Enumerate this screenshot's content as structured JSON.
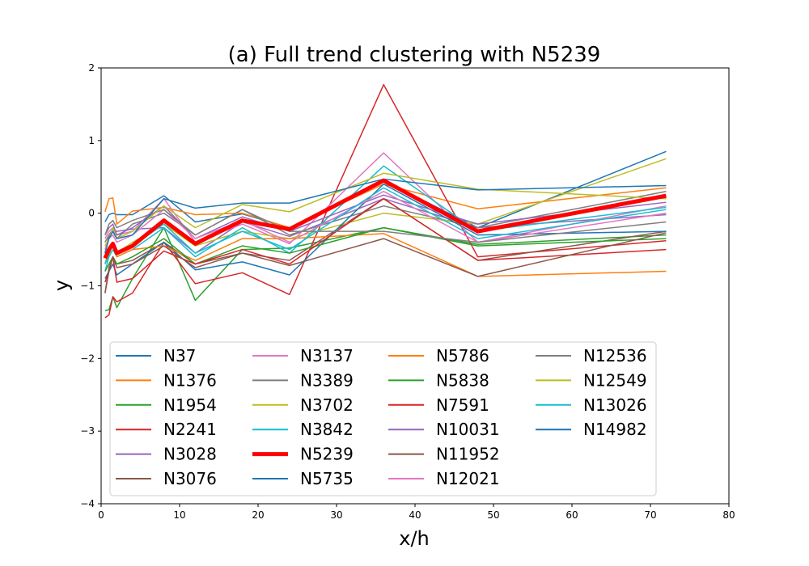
{
  "chart_data": {
    "type": "line",
    "title": "(a) Full trend clustering with N5239",
    "xlabel": "x/h",
    "ylabel": "y",
    "xlim": [
      0,
      80
    ],
    "ylim": [
      -4,
      2
    ],
    "xticks": [
      0,
      10,
      20,
      30,
      40,
      50,
      60,
      70,
      80
    ],
    "yticks": [
      -4,
      -3,
      -2,
      -1,
      0,
      1,
      2
    ],
    "x": [
      0.5,
      1,
      1.5,
      2,
      4,
      8,
      12,
      18,
      24,
      36,
      48,
      72
    ],
    "grid": false,
    "legend_position": "lower-center",
    "highlight_series": "N5239",
    "highlight_color": "#ff0000",
    "series": [
      {
        "name": "N37",
        "color": "#1f77b4",
        "values": [
          -0.12,
          -0.02,
          0.0,
          -0.02,
          -0.02,
          0.24,
          -0.12,
          -0.01,
          -0.2,
          0.45,
          -0.2,
          0.85
        ]
      },
      {
        "name": "N1376",
        "color": "#ff7f0e",
        "values": [
          0.02,
          0.2,
          0.21,
          -0.15,
          0.03,
          0.08,
          -0.02,
          -0.0,
          -0.2,
          0.4,
          0.06,
          0.35
        ]
      },
      {
        "name": "N1954",
        "color": "#2ca02c",
        "values": [
          -1.34,
          -1.33,
          -1.15,
          -1.3,
          -0.9,
          -0.2,
          -1.2,
          -0.5,
          -0.48,
          -0.2,
          -0.43,
          -0.3
        ]
      },
      {
        "name": "N2241",
        "color": "#d62728",
        "values": [
          -1.44,
          -1.4,
          -1.15,
          -1.22,
          -1.1,
          -0.4,
          -0.97,
          -0.82,
          -1.12,
          1.77,
          -0.6,
          -0.38
        ]
      },
      {
        "name": "N3028",
        "color": "#9467bd",
        "values": [
          -0.55,
          -0.3,
          -0.22,
          -0.25,
          -0.22,
          -0.2,
          -0.55,
          -0.12,
          -0.32,
          0.2,
          -0.2,
          -0.02
        ]
      },
      {
        "name": "N3076",
        "color": "#8c564b",
        "values": [
          -1.1,
          -0.75,
          -0.6,
          -0.7,
          -0.65,
          -0.4,
          -0.7,
          -0.55,
          -0.65,
          0.2,
          -0.65,
          -0.25
        ]
      },
      {
        "name": "N3137",
        "color": "#e377c2",
        "values": [
          -0.35,
          -0.25,
          -0.2,
          -0.3,
          -0.25,
          0.2,
          -0.4,
          -0.15,
          -0.42,
          0.83,
          -0.4,
          0.1
        ]
      },
      {
        "name": "N3389",
        "color": "#7f7f7f",
        "values": [
          -0.4,
          -0.3,
          -0.25,
          -0.35,
          -0.15,
          0.0,
          -0.3,
          0.05,
          -0.3,
          0.1,
          -0.2,
          0.3
        ]
      },
      {
        "name": "N3702",
        "color": "#bcbd22",
        "values": [
          -0.7,
          -0.6,
          -0.4,
          -0.55,
          -0.4,
          -0.15,
          -0.45,
          -0.25,
          -0.35,
          0.0,
          -0.15,
          0.75
        ]
      },
      {
        "name": "N3842",
        "color": "#17becf",
        "values": [
          -0.8,
          -0.6,
          -0.5,
          -0.6,
          -0.5,
          -0.2,
          -0.6,
          -0.2,
          -0.55,
          0.65,
          -0.25,
          0.08
        ]
      },
      {
        "name": "N5239",
        "color": "#ff0000",
        "values": [
          -0.62,
          -0.5,
          -0.42,
          -0.55,
          -0.45,
          -0.1,
          -0.42,
          -0.1,
          -0.22,
          0.45,
          -0.25,
          0.24
        ]
      },
      {
        "name": "N5735",
        "color": "#1f77b4",
        "values": [
          -0.9,
          -0.8,
          -0.7,
          -0.85,
          -0.7,
          -0.4,
          -0.78,
          -0.67,
          -0.85,
          0.4,
          -0.3,
          -0.25
        ]
      },
      {
        "name": "N5786",
        "color": "#ff7f0e",
        "values": [
          -0.7,
          -0.5,
          -0.4,
          -0.6,
          -0.5,
          -0.45,
          -0.65,
          -0.35,
          -0.35,
          -0.28,
          -0.87,
          -0.8
        ]
      },
      {
        "name": "N5838",
        "color": "#2ca02c",
        "values": [
          -0.8,
          -0.7,
          -0.6,
          -0.7,
          -0.6,
          -0.35,
          -0.7,
          -0.45,
          -0.55,
          -0.2,
          -0.45,
          -0.35
        ]
      },
      {
        "name": "N7591",
        "color": "#d62728",
        "values": [
          -0.95,
          -0.8,
          -0.6,
          -0.95,
          -0.9,
          -0.52,
          -0.7,
          -0.5,
          -0.7,
          0.2,
          -0.65,
          -0.5
        ]
      },
      {
        "name": "N10031",
        "color": "#9467bd",
        "values": [
          -0.3,
          -0.2,
          -0.15,
          -0.3,
          -0.2,
          0.1,
          -0.35,
          -0.05,
          -0.25,
          0.25,
          -0.15,
          0.15
        ]
      },
      {
        "name": "N11952",
        "color": "#8c564b",
        "values": [
          -1.1,
          -0.8,
          -0.6,
          -0.75,
          -0.7,
          -0.45,
          -0.75,
          -0.55,
          -0.72,
          -0.35,
          -0.87,
          -0.27
        ]
      },
      {
        "name": "N12021",
        "color": "#e377c2",
        "values": [
          -0.5,
          -0.35,
          -0.3,
          -0.4,
          -0.3,
          0.05,
          -0.35,
          -0.1,
          -0.4,
          0.3,
          -0.4,
          0.0
        ]
      },
      {
        "name": "N12536",
        "color": "#7f7f7f",
        "values": [
          -0.3,
          -0.15,
          -0.1,
          -0.2,
          -0.1,
          0.05,
          -0.3,
          0.05,
          -0.25,
          -0.25,
          -0.4,
          -0.12
        ]
      },
      {
        "name": "N12549",
        "color": "#bcbd22",
        "values": [
          -0.45,
          -0.35,
          -0.2,
          -0.35,
          -0.25,
          0.1,
          -0.2,
          0.12,
          0.02,
          0.55,
          0.33,
          0.2
        ]
      },
      {
        "name": "N13026",
        "color": "#17becf",
        "values": [
          -0.7,
          -0.55,
          -0.45,
          -0.55,
          -0.45,
          -0.15,
          -0.55,
          -0.25,
          -0.5,
          0.35,
          -0.35,
          0.05
        ]
      },
      {
        "name": "N14982",
        "color": "#1f77b4",
        "values": [
          -0.55,
          -0.35,
          -0.25,
          -0.35,
          -0.3,
          0.2,
          0.07,
          0.14,
          0.14,
          0.47,
          0.32,
          0.38
        ]
      }
    ]
  }
}
